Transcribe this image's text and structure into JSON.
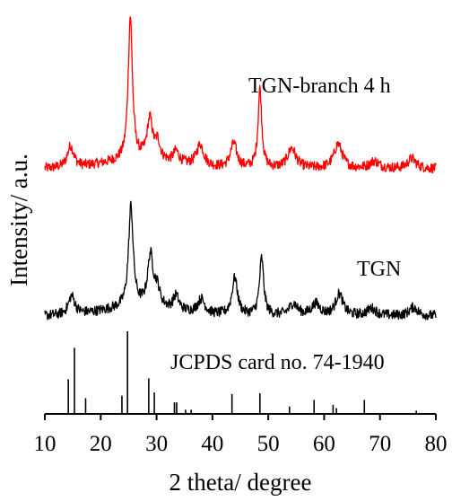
{
  "chart_data": {
    "type": "line",
    "xlabel": "2 theta/ degree",
    "ylabel": "Intensity/ a.u.",
    "xlim": [
      10,
      80
    ],
    "x_ticks": [
      10,
      20,
      30,
      40,
      50,
      60,
      70,
      80
    ],
    "y_ticks_shown": false,
    "grid": false,
    "series": [
      {
        "name": "TGN-branch 4 h",
        "color": "#ff0000",
        "peaks": [
          {
            "x": 14.6,
            "h": 0.15,
            "w": 0.7
          },
          {
            "x": 25.3,
            "h": 1.0,
            "w": 0.45
          },
          {
            "x": 28.8,
            "h": 0.28,
            "w": 0.6
          },
          {
            "x": 30.2,
            "h": 0.12,
            "w": 0.5
          },
          {
            "x": 33.5,
            "h": 0.08,
            "w": 0.6
          },
          {
            "x": 37.8,
            "h": 0.15,
            "w": 0.8
          },
          {
            "x": 43.8,
            "h": 0.17,
            "w": 0.7
          },
          {
            "x": 48.5,
            "h": 0.55,
            "w": 0.4
          },
          {
            "x": 54.2,
            "h": 0.14,
            "w": 0.9
          },
          {
            "x": 62.5,
            "h": 0.17,
            "w": 0.9
          },
          {
            "x": 69.0,
            "h": 0.05,
            "w": 1.0
          },
          {
            "x": 75.7,
            "h": 0.07,
            "w": 0.9
          }
        ]
      },
      {
        "name": "TGN",
        "color": "#000000",
        "peaks": [
          {
            "x": 14.8,
            "h": 0.13,
            "w": 0.7
          },
          {
            "x": 25.4,
            "h": 0.7,
            "w": 0.5
          },
          {
            "x": 28.9,
            "h": 0.35,
            "w": 0.6
          },
          {
            "x": 30.1,
            "h": 0.12,
            "w": 0.6
          },
          {
            "x": 33.5,
            "h": 0.1,
            "w": 0.6
          },
          {
            "x": 38.0,
            "h": 0.1,
            "w": 0.8
          },
          {
            "x": 44.0,
            "h": 0.26,
            "w": 0.6
          },
          {
            "x": 48.8,
            "h": 0.4,
            "w": 0.45
          },
          {
            "x": 54.5,
            "h": 0.08,
            "w": 0.9
          },
          {
            "x": 58.5,
            "h": 0.08,
            "w": 0.9
          },
          {
            "x": 62.7,
            "h": 0.15,
            "w": 0.8
          },
          {
            "x": 68.5,
            "h": 0.05,
            "w": 1.0
          },
          {
            "x": 76.0,
            "h": 0.06,
            "w": 0.9
          }
        ]
      }
    ],
    "reference": {
      "name": "JCPDS card no. 74-1940",
      "color": "#000000",
      "lines": [
        {
          "x": 14.2,
          "h": 0.42
        },
        {
          "x": 15.3,
          "h": 0.8
        },
        {
          "x": 17.3,
          "h": 0.19
        },
        {
          "x": 23.8,
          "h": 0.22
        },
        {
          "x": 24.8,
          "h": 1.0
        },
        {
          "x": 28.6,
          "h": 0.43
        },
        {
          "x": 29.6,
          "h": 0.26
        },
        {
          "x": 33.2,
          "h": 0.14
        },
        {
          "x": 33.6,
          "h": 0.14
        },
        {
          "x": 35.2,
          "h": 0.05
        },
        {
          "x": 36.2,
          "h": 0.05
        },
        {
          "x": 43.5,
          "h": 0.24
        },
        {
          "x": 48.5,
          "h": 0.25
        },
        {
          "x": 53.8,
          "h": 0.09
        },
        {
          "x": 58.2,
          "h": 0.17
        },
        {
          "x": 61.6,
          "h": 0.11
        },
        {
          "x": 62.2,
          "h": 0.07
        },
        {
          "x": 67.2,
          "h": 0.17
        },
        {
          "x": 76.5,
          "h": 0.04
        }
      ]
    }
  }
}
